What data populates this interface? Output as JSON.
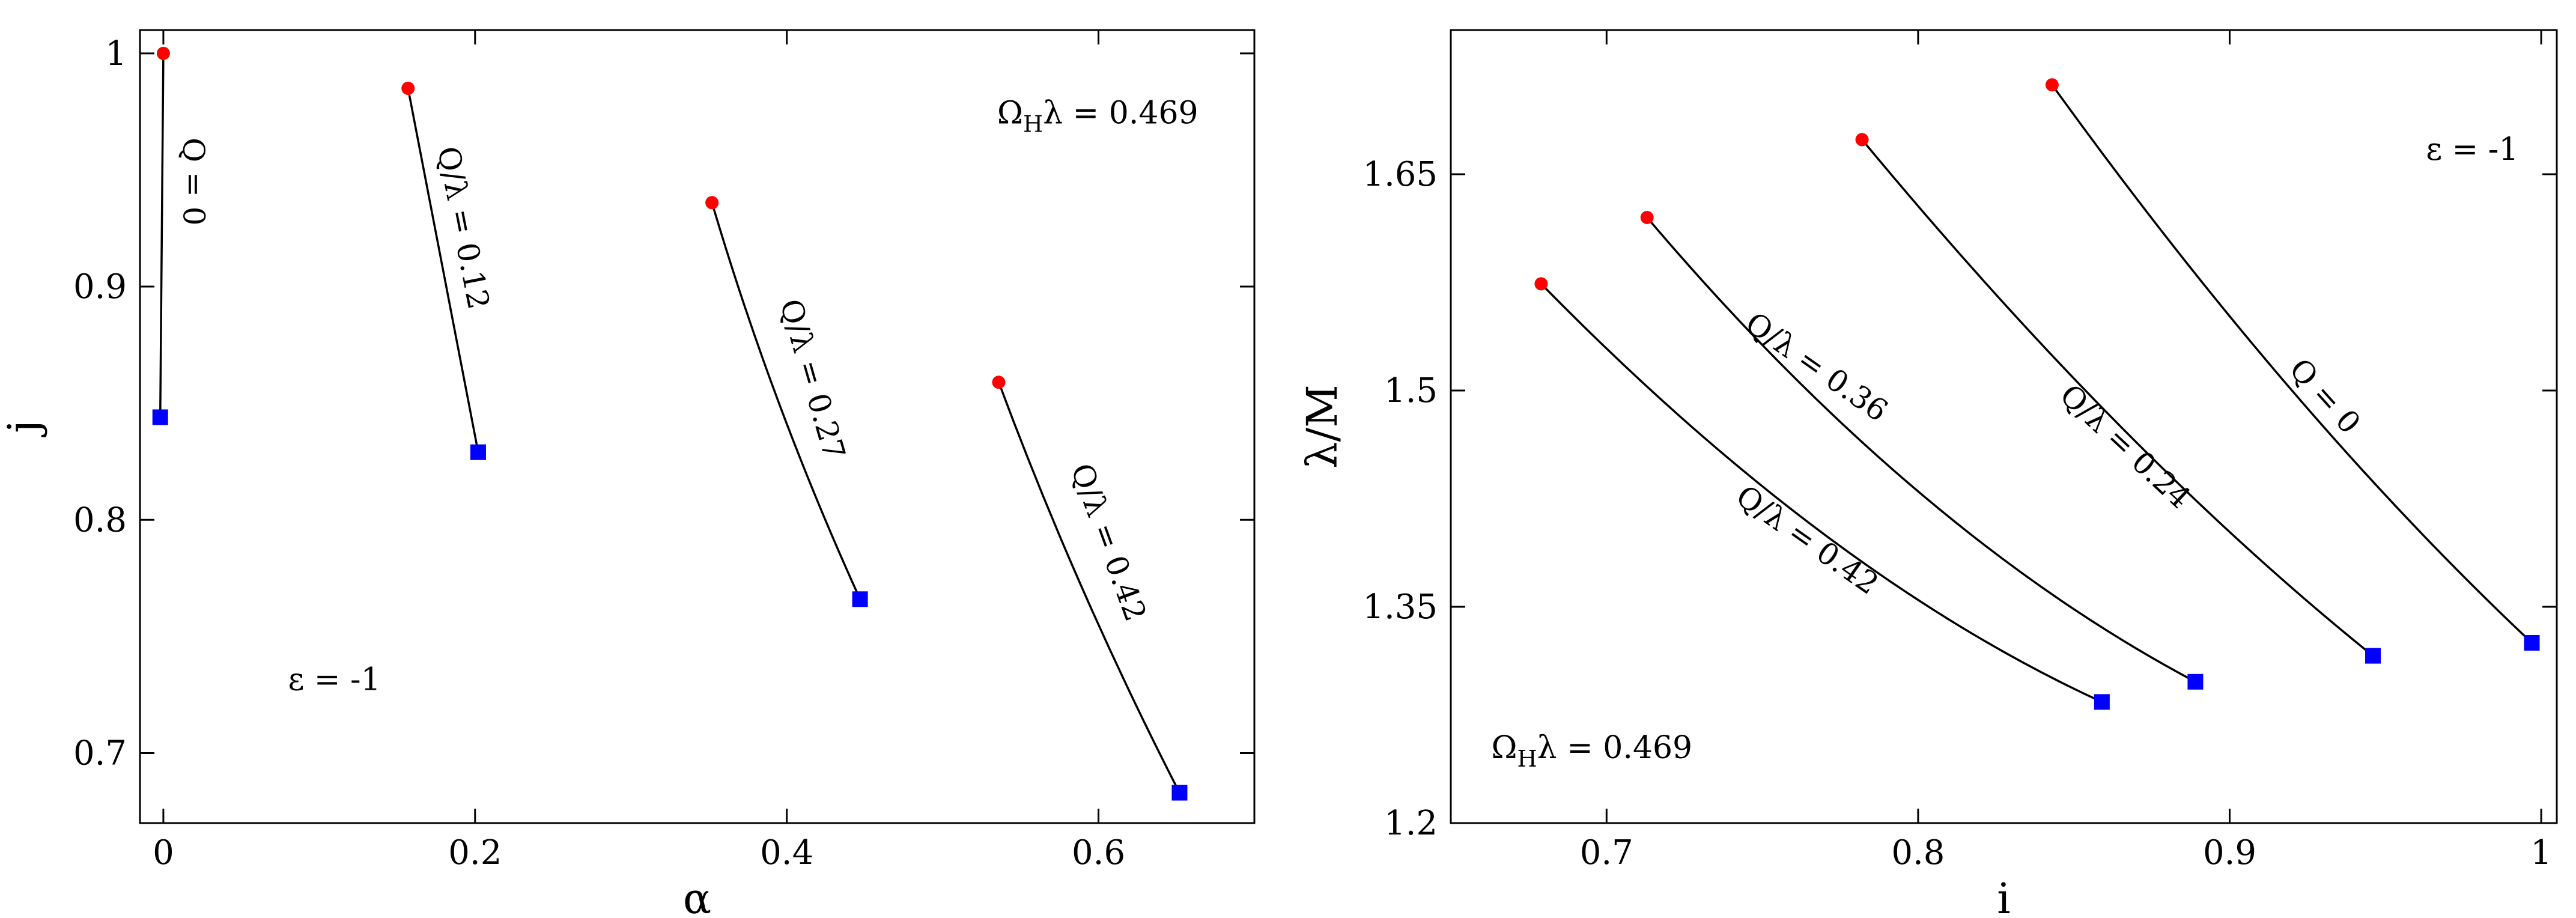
{
  "chart_data": [
    {
      "type": "line",
      "xlabel": "α",
      "ylabel": "j",
      "xlim": [
        -0.015,
        0.7
      ],
      "ylim": [
        0.67,
        1.01
      ],
      "xticks": [
        0,
        0.2,
        0.4,
        0.6
      ],
      "xtick_labels": [
        "0",
        "0.2",
        "0.4",
        "0.6"
      ],
      "yticks": [
        0.7,
        0.8,
        0.9,
        1.0
      ],
      "ytick_labels": [
        "0.7",
        "0.8",
        "0.9",
        "1"
      ],
      "annotations": [
        {
          "text": "Ω",
          "sub": "H",
          "rest": "λ = 0.469",
          "x": 0.535,
          "y": 0.97
        },
        {
          "text": "ε = -1",
          "x": 0.08,
          "y": 0.727
        }
      ],
      "series": [
        {
          "label": "Q = 0",
          "label_x": 0.018,
          "label_y": 0.945,
          "label_angle": 90,
          "x": [
            0.0,
            -0.001,
            -0.002
          ],
          "y": [
            1.0,
            0.92,
            0.844
          ]
        },
        {
          "label": "Q/λ = 0.12",
          "label_x": 0.191,
          "label_y": 0.925,
          "label_angle": 79,
          "x": [
            0.157,
            0.18,
            0.202
          ],
          "y": [
            0.985,
            0.905,
            0.829
          ]
        },
        {
          "label": "Q/λ = 0.27",
          "label_x": 0.415,
          "label_y": 0.86,
          "label_angle": 74,
          "x": [
            0.352,
            0.395,
            0.447
          ],
          "y": [
            0.936,
            0.85,
            0.766
          ]
        },
        {
          "label": "Q/λ = 0.42",
          "label_x": 0.605,
          "label_y": 0.79,
          "label_angle": 70,
          "x": [
            0.536,
            0.59,
            0.652
          ],
          "y": [
            0.859,
            0.77,
            0.683
          ]
        }
      ]
    },
    {
      "type": "line",
      "xlabel": "i",
      "ylabel": "λ/M",
      "xlim": [
        0.65,
        1.005
      ],
      "ylim": [
        1.2,
        1.75
      ],
      "xticks": [
        0.7,
        0.8,
        0.9,
        1.0
      ],
      "xtick_labels": [
        "0.7",
        "0.8",
        "0.9",
        "1"
      ],
      "yticks": [
        1.2,
        1.35,
        1.5,
        1.65
      ],
      "ytick_labels": [
        "1.2",
        "1.35",
        "1.5",
        "1.65"
      ],
      "annotations": [
        {
          "text": "Ω",
          "sub": "H",
          "rest": "λ = 0.469",
          "x": 0.663,
          "y": 1.245
        },
        {
          "text": "ε = -1",
          "x": 0.963,
          "y": 1.66
        }
      ],
      "series": [
        {
          "label": "Q = 0",
          "label_x": 0.93,
          "label_y": 1.495,
          "label_angle": 48,
          "x": [
            0.843,
            0.92,
            0.997
          ],
          "y": [
            1.712,
            1.5,
            1.325
          ]
        },
        {
          "label": "Q/λ = 0.24",
          "label_x": 0.866,
          "label_y": 1.46,
          "label_angle": 43,
          "x": [
            0.782,
            0.865,
            0.946
          ],
          "y": [
            1.674,
            1.475,
            1.316
          ]
        },
        {
          "label": "Q/λ = 0.36",
          "label_x": 0.767,
          "label_y": 1.515,
          "label_angle": 35,
          "x": [
            0.713,
            0.8,
            0.889
          ],
          "y": [
            1.62,
            1.43,
            1.298
          ]
        },
        {
          "label": "Q/λ = 0.42",
          "label_x": 0.764,
          "label_y": 1.395,
          "label_angle": 35,
          "x": [
            0.679,
            0.77,
            0.859
          ],
          "y": [
            1.574,
            1.4,
            1.284
          ]
        }
      ]
    }
  ],
  "style": {
    "line_color": "#000000",
    "start_marker_color": "#ff0000",
    "end_marker_color": "#0000ff",
    "start_marker": "circle",
    "end_marker": "square"
  }
}
